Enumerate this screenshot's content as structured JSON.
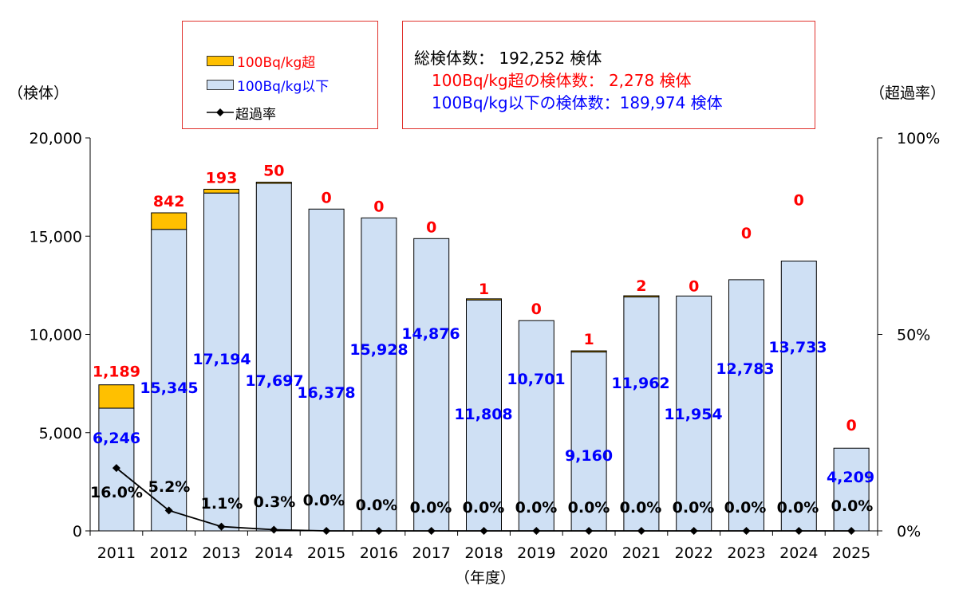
{
  "legend": {
    "over_label": "100Bq/kg超",
    "under_label": "100Bq/kg以下",
    "rate_label": "超過率"
  },
  "summary": {
    "total": "総検体数： 192,252 検体",
    "over": "100Bq/kg超の検体数： 2,278 検体",
    "under": "100Bq/kg以下の検体数：189,974 検体"
  },
  "colors": {
    "over": "#ffc000",
    "under": "#cfe0f4",
    "over_label": "#ff0000",
    "under_label": "#0000ff",
    "rate_label": "#000000"
  },
  "chart_data": {
    "type": "bar",
    "stacked": true,
    "categories": [
      "2011",
      "2012",
      "2013",
      "2014",
      "2015",
      "2016",
      "2017",
      "2018",
      "2019",
      "2020",
      "2021",
      "2022",
      "2023",
      "2024",
      "2025"
    ],
    "series": [
      {
        "name": "100Bq/kg以下",
        "values": [
          6246,
          15345,
          17194,
          17697,
          16378,
          15928,
          14876,
          11808,
          10701,
          9160,
          11962,
          11954,
          12783,
          13733,
          4209
        ],
        "labels": [
          "6,246",
          "15,345",
          "17,194",
          "17,697",
          "16,378",
          "15,928",
          "14,876",
          "11,808",
          "10,701",
          "9,160",
          "11,962",
          "11,954",
          "12,783",
          "13,733",
          "4,209"
        ]
      },
      {
        "name": "100Bq/kg超",
        "values": [
          1189,
          842,
          193,
          50,
          0,
          0,
          0,
          1,
          0,
          1,
          2,
          0,
          0,
          0,
          0
        ],
        "labels": [
          "1,189",
          "842",
          "193",
          "50",
          "0",
          "0",
          "0",
          "1",
          "0",
          "1",
          "2",
          "0",
          "0",
          "0",
          "0"
        ]
      },
      {
        "name": "超過率",
        "axis": "secondary",
        "values": [
          16.0,
          5.2,
          1.1,
          0.3,
          0.0,
          0.0,
          0.0,
          0.0,
          0.0,
          0.0,
          0.0,
          0.0,
          0.0,
          0.0,
          0.0
        ],
        "labels": [
          "16.0%",
          "5.2%",
          "1.1%",
          "0.3%",
          "0.0%",
          "0.0%",
          "0.0%",
          "0.0%",
          "0.0%",
          "0.0%",
          "0.0%",
          "0.0%",
          "0.0%",
          "0.0%",
          "0.0%"
        ]
      }
    ],
    "xlabel": "（年度）",
    "ylabel": "（検体）",
    "y2label": "（超過率）",
    "ylim": [
      0,
      20000
    ],
    "y2lim": [
      0,
      100
    ],
    "yticks": [
      0,
      5000,
      10000,
      15000,
      20000
    ],
    "yticklabels": [
      "0",
      "5,000",
      "10,000",
      "15,000",
      "20,000"
    ],
    "y2ticks": [
      0,
      50,
      100
    ],
    "y2ticklabels": [
      "0%",
      "50%",
      "100%"
    ],
    "grid": false,
    "legend_position": "top-left"
  }
}
